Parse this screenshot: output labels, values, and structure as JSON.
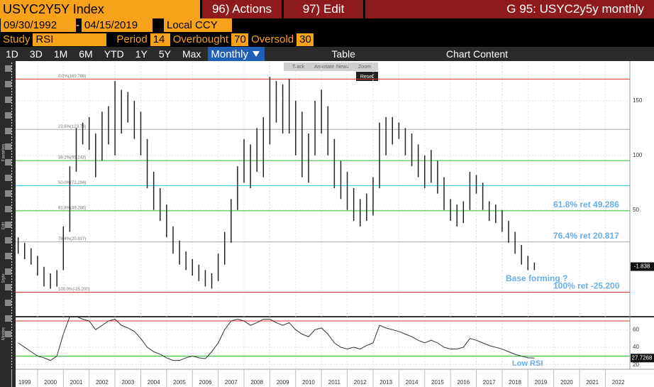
{
  "header": {
    "title": "USYC2Y5Y Index",
    "actions": "96) Actions",
    "edit": "97) Edit",
    "chart_name": "G 95: USYC2y5y monthly"
  },
  "range": {
    "start": "09/30/1992",
    "end": "04/15/2019",
    "currency": "Local CCY"
  },
  "study": {
    "label": "Study",
    "name": "RSI",
    "period_label": "Period",
    "period": 14,
    "overbought_label": "Overbought",
    "overbought": 70,
    "oversold_label": "Oversold",
    "oversold": 30
  },
  "toolbar": {
    "periods": [
      "1D",
      "3D",
      "1M",
      "6M",
      "YTD",
      "1Y",
      "5Y",
      "Max"
    ],
    "frequency": "Monthly",
    "table": "Table",
    "content": "Chart Content"
  },
  "mini_toolbar": {
    "items": [
      "Track",
      "Annotate",
      "News",
      "Zoom"
    ],
    "reset": "Reset"
  },
  "sidebar": [
    "Favorites",
    "Edit",
    "Style",
    "Modes"
  ],
  "chart_data": [
    {
      "type": "range_bar",
      "color": "#222222",
      "x": [
        1999.25,
        1999.5,
        1999.75,
        2000,
        2000.25,
        2000.5,
        2000.75,
        2001,
        2001.25,
        2001.5,
        2001.75,
        2002,
        2002.25,
        2002.5,
        2002.75,
        2003,
        2003.25,
        2003.5,
        2003.75,
        2004,
        2004.25,
        2004.5,
        2004.75,
        2005,
        2005.25,
        2005.5,
        2005.75,
        2006,
        2006.25,
        2006.5,
        2006.75,
        2007,
        2007.25,
        2007.5,
        2007.75,
        2008,
        2008.25,
        2008.5,
        2008.75,
        2009,
        2009.25,
        2009.5,
        2009.75,
        2010,
        2010.25,
        2010.5,
        2010.75,
        2011,
        2011.25,
        2011.5,
        2011.75,
        2012,
        2012.25,
        2012.5,
        2012.75,
        2013,
        2013.25,
        2013.5,
        2013.75,
        2014,
        2014.25,
        2014.5,
        2014.75,
        2015,
        2015.25,
        2015.5,
        2015.75,
        2016,
        2016.25,
        2016.5,
        2016.75,
        2017,
        2017.25,
        2017.5,
        2017.75,
        2018,
        2018.25,
        2018.5,
        2018.75,
        2019,
        2019.25
      ],
      "lows": [
        10,
        5,
        0,
        -10,
        -20,
        -22,
        -20,
        -5,
        30,
        85,
        110,
        105,
        80,
        95,
        110,
        100,
        120,
        130,
        115,
        100,
        70,
        50,
        40,
        25,
        10,
        0,
        -5,
        -10,
        -15,
        -20,
        -22,
        -15,
        0,
        20,
        50,
        75,
        70,
        85,
        80,
        110,
        130,
        120,
        120,
        100,
        80,
        75,
        100,
        120,
        100,
        70,
        60,
        50,
        40,
        35,
        40,
        45,
        70,
        100,
        110,
        115,
        100,
        90,
        80,
        70,
        75,
        65,
        50,
        40,
        35,
        38,
        50,
        65,
        50,
        40,
        38,
        30,
        20,
        10,
        0,
        -5,
        -5
      ],
      "highs": [
        25,
        20,
        15,
        8,
        -2,
        -8,
        -5,
        35,
        90,
        125,
        130,
        135,
        120,
        140,
        145,
        168,
        160,
        158,
        150,
        140,
        115,
        85,
        70,
        55,
        35,
        22,
        12,
        5,
        0,
        -5,
        -8,
        10,
        30,
        60,
        90,
        115,
        110,
        125,
        135,
        172,
        168,
        165,
        170,
        150,
        140,
        120,
        150,
        160,
        145,
        115,
        95,
        85,
        70,
        60,
        65,
        80,
        130,
        135,
        135,
        130,
        125,
        120,
        110,
        100,
        105,
        95,
        80,
        60,
        55,
        58,
        85,
        82,
        75,
        58,
        55,
        50,
        40,
        30,
        18,
        8,
        2
      ],
      "last_value": -1.838,
      "xlim": [
        1999.15,
        2022.95
      ],
      "xticks": [
        1999,
        2000,
        2001,
        2002,
        2003,
        2004,
        2005,
        2006,
        2007,
        2008,
        2009,
        2010,
        2011,
        2012,
        2013,
        2014,
        2015,
        2016,
        2017,
        2018,
        2019,
        2020,
        2021,
        2022
      ],
      "ylim": [
        -47,
        185
      ],
      "yticks": [
        50,
        100,
        150
      ],
      "levels": [
        {
          "value": 169.788,
          "label": "0.0%(169.788)",
          "color": "#d93030"
        },
        {
          "value": 123.73,
          "label": "23.6%(123.73)",
          "color": "#aaaaaa"
        },
        {
          "value": 95.243,
          "label": "38.2%(95.243)",
          "color": "#2fbf2f"
        },
        {
          "value": 72.294,
          "label": "50.0%(72.294)",
          "color": "#28c8e0"
        },
        {
          "value": 49.286,
          "label": "61.8%(49.286)",
          "color": "#2fbf2f"
        },
        {
          "value": 20.817,
          "label": "76.4%(20.817)",
          "color": "#aaaaaa"
        },
        {
          "value": -25.2,
          "label": "100.0%(-25.200)",
          "color": "#d93030"
        }
      ],
      "annotations": [
        {
          "text": "61.8% ret 49.286",
          "value": 49.286
        },
        {
          "text": "76.4% ret 20.817",
          "value": 20.817
        },
        {
          "text": "100% ret -25.200",
          "value": -25.2
        }
      ],
      "note": "Base forming ?"
    },
    {
      "type": "line",
      "color": "#333333",
      "x": [
        1999.25,
        1999.5,
        1999.75,
        2000,
        2000.25,
        2000.5,
        2000.75,
        2001,
        2001.25,
        2001.5,
        2001.75,
        2002,
        2002.25,
        2002.5,
        2002.75,
        2003,
        2003.25,
        2003.5,
        2003.75,
        2004,
        2004.25,
        2004.5,
        2004.75,
        2005,
        2005.25,
        2005.5,
        2005.75,
        2006,
        2006.25,
        2006.5,
        2006.75,
        2007,
        2007.25,
        2007.5,
        2007.75,
        2008,
        2008.25,
        2008.5,
        2008.75,
        2009,
        2009.25,
        2009.5,
        2009.75,
        2010,
        2010.25,
        2010.5,
        2010.75,
        2011,
        2011.25,
        2011.5,
        2011.75,
        2012,
        2012.25,
        2012.5,
        2012.75,
        2013,
        2013.25,
        2013.5,
        2013.75,
        2014,
        2014.25,
        2014.5,
        2014.75,
        2015,
        2015.25,
        2015.5,
        2015.75,
        2016,
        2016.25,
        2016.5,
        2016.75,
        2017,
        2017.25,
        2017.5,
        2017.75,
        2018,
        2018.25,
        2018.5,
        2018.75,
        2019,
        2019.25
      ],
      "values": [
        45,
        40,
        35,
        30,
        28,
        25,
        30,
        55,
        75,
        75,
        72,
        70,
        60,
        65,
        70,
        72,
        65,
        62,
        58,
        50,
        40,
        35,
        32,
        28,
        25,
        25,
        28,
        30,
        28,
        27,
        35,
        45,
        60,
        70,
        72,
        70,
        65,
        68,
        72,
        72,
        68,
        65,
        68,
        60,
        55,
        52,
        60,
        62,
        55,
        45,
        40,
        38,
        40,
        38,
        42,
        45,
        65,
        62,
        60,
        58,
        55,
        52,
        48,
        45,
        48,
        45,
        40,
        38,
        38,
        40,
        50,
        48,
        45,
        42,
        40,
        38,
        35,
        32,
        30,
        28,
        27.7268
      ],
      "xlim": [
        1999.15,
        2022.95
      ],
      "ylim": [
        15,
        74
      ],
      "yticks": [
        20,
        40,
        60
      ],
      "note": "Low RSI"
    }
  ]
}
